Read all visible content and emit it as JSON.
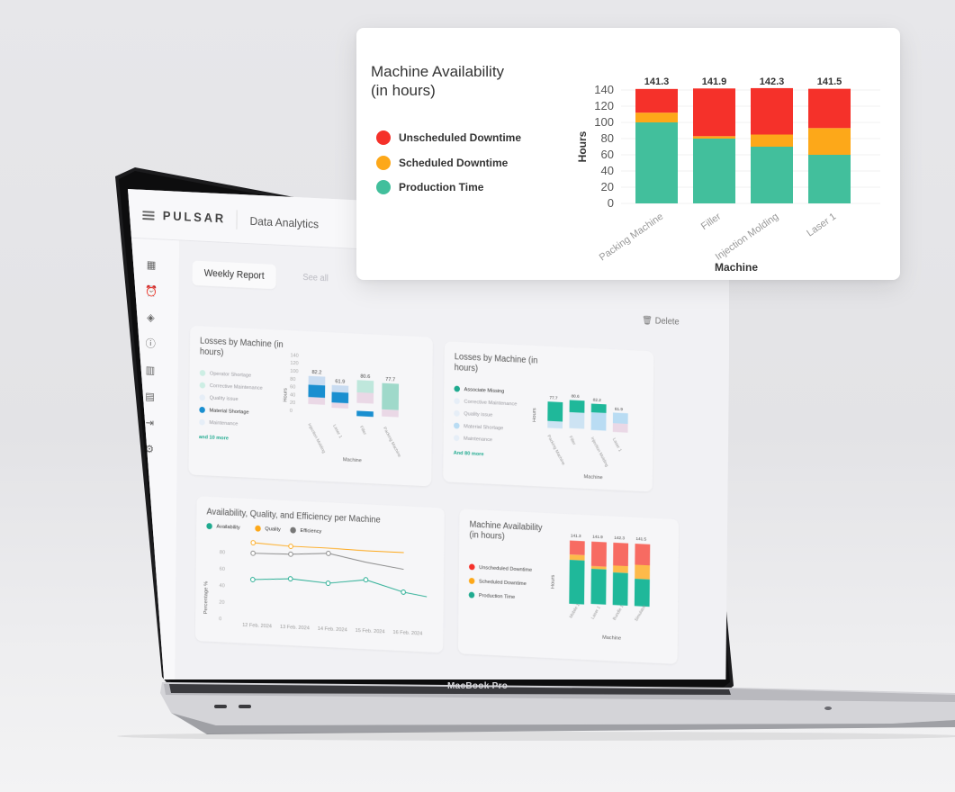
{
  "laptop": {
    "model_label": "MacBook Pro",
    "brand": "PULSAR",
    "app_title": "Data Analytics",
    "tabs": [
      {
        "label": "Weekly Report"
      },
      {
        "label": "See all"
      }
    ],
    "delete_label": "Delete"
  },
  "losses_card": {
    "title": "Losses by Machine (in hours)",
    "legend": [
      "Operator Shortage",
      "Corrective Maintenance",
      "Quality issue",
      "Material Shortage",
      "Maintenance"
    ],
    "more": "and 10 more",
    "y_ticks": [
      "140",
      "120",
      "100",
      "80",
      "60",
      "40",
      "20",
      "0"
    ],
    "ylabel": "Hours",
    "xlabel": "Machine",
    "categories": [
      "Injection Molding",
      "Laser 1",
      "Filler",
      "Packing Machine"
    ],
    "totals": [
      "82.2",
      "61.9",
      "80.6",
      "77.7"
    ]
  },
  "losses_card_2": {
    "title": "Losses by Machine (in hours)",
    "legend": [
      "Associate Missing",
      "Corrective Maintenance",
      "Quality issue",
      "Material Shortage",
      "Maintenance"
    ],
    "more": "And 80 more",
    "ylabel": "Hours",
    "xlabel": "Machine",
    "categories": [
      "Packing Machine",
      "Filler",
      "Injection Molding",
      "Laser 1"
    ],
    "totals": [
      "77.7",
      "80.6",
      "82.2",
      "61.9"
    ]
  },
  "aqe_card": {
    "title": "Availability, Quality, and Efficiency per Machine",
    "legend": [
      "Availability",
      "Quality",
      "Efficiency"
    ],
    "ylabel": "Percentage %",
    "y_ticks": [
      "80",
      "60",
      "40",
      "20",
      "0"
    ],
    "dates": [
      "12 Feb. 2024",
      "13 Feb. 2024",
      "14 Feb. 2024",
      "15 Feb. 2024",
      "16 Feb. 2024"
    ]
  },
  "mini_availability_card": {
    "title": "Machine Availability (in hours)",
    "legend": [
      "Unscheduled Downtime",
      "Scheduled Downtime",
      "Production Time"
    ],
    "totals": [
      "141.3",
      "141.9",
      "142.3",
      "141.5"
    ],
    "categories": [
      "Mobile 1",
      "Laser 1",
      "Bundle 1",
      "Simulator"
    ],
    "xlabel": "Machine",
    "ylabel": "Hours"
  },
  "popout": {
    "title_line1": "Machine Availability",
    "title_line2": "(in hours)",
    "legend": [
      {
        "label": "Unscheduled Downtime",
        "color": "#f5312a"
      },
      {
        "label": "Scheduled Downtime",
        "color": "#fda819"
      },
      {
        "label": "Production Time",
        "color": "#42bf9c"
      }
    ]
  },
  "chart_data": {
    "type": "bar",
    "stacked": true,
    "title": "Machine Availability (in hours)",
    "xlabel": "Machine",
    "ylabel": "Hours",
    "ylim": [
      0,
      140
    ],
    "yticks": [
      0,
      20,
      40,
      60,
      80,
      100,
      120,
      140
    ],
    "categories": [
      "Packing Machine",
      "Filler",
      "Injection Molding",
      "Laser 1"
    ],
    "totals": [
      141.3,
      141.9,
      142.3,
      141.5
    ],
    "series": [
      {
        "name": "Production Time",
        "color": "#42bf9c",
        "values": [
          100,
          80,
          70,
          60
        ]
      },
      {
        "name": "Scheduled Downtime",
        "color": "#fda819",
        "values": [
          12,
          3,
          15,
          33
        ]
      },
      {
        "name": "Unscheduled Downtime",
        "color": "#f5312a",
        "values": [
          29.3,
          58.9,
          57.3,
          48.5
        ]
      }
    ],
    "grid": true,
    "legend": "left"
  }
}
